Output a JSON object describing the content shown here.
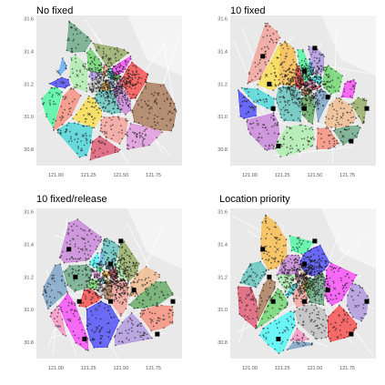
{
  "chart_data": [
    {
      "type": "scatter",
      "title": "No fixed",
      "x_ticks": [
        "121.00",
        "121.25",
        "121.50",
        "121.75"
      ],
      "y_ticks": [
        "31.6",
        "31.4",
        "31.2",
        "31.0",
        "30.8"
      ],
      "xlim": [
        120.85,
        121.97
      ],
      "ylim": [
        30.7,
        31.62
      ],
      "fixed_markers": []
    },
    {
      "type": "scatter",
      "title": "10 fixed",
      "x_ticks": [
        "121.00",
        "121.25",
        "121.50",
        "121.75"
      ],
      "y_ticks": [
        "31.6",
        "31.4",
        "31.2",
        "31.0",
        "30.8"
      ],
      "xlim": [
        120.85,
        121.97
      ],
      "ylim": [
        30.7,
        31.62
      ],
      "fixed_markers": [
        [
          121.1,
          31.37
        ],
        [
          121.18,
          31.05
        ],
        [
          121.42,
          31.05
        ],
        [
          121.22,
          30.82
        ],
        [
          121.78,
          30.85
        ],
        [
          121.9,
          31.05
        ],
        [
          121.6,
          31.12
        ],
        [
          121.42,
          31.28
        ],
        [
          121.15,
          31.2
        ],
        [
          121.5,
          31.42
        ]
      ]
    },
    {
      "type": "scatter",
      "title": "10 fixed/release",
      "x_ticks": [
        "121.00",
        "121.25",
        "121.50",
        "121.75"
      ],
      "y_ticks": [
        "31.6",
        "31.4",
        "31.2",
        "31.0",
        "30.8"
      ],
      "xlim": [
        120.85,
        121.97
      ],
      "ylim": [
        30.7,
        31.62
      ],
      "fixed_markers": [
        [
          121.1,
          31.37
        ],
        [
          121.18,
          31.05
        ],
        [
          121.42,
          31.05
        ],
        [
          121.22,
          30.82
        ],
        [
          121.78,
          30.85
        ],
        [
          121.9,
          31.05
        ],
        [
          121.6,
          31.12
        ],
        [
          121.42,
          31.28
        ],
        [
          121.15,
          31.2
        ],
        [
          121.5,
          31.42
        ]
      ]
    },
    {
      "type": "scatter",
      "title": "Location priority",
      "x_ticks": [
        "121.00",
        "121.25",
        "121.50",
        "121.75"
      ],
      "y_ticks": [
        "31.6",
        "31.4",
        "31.2",
        "31.0",
        "30.8"
      ],
      "xlim": [
        120.85,
        121.97
      ],
      "ylim": [
        30.7,
        31.62
      ],
      "fixed_markers": [
        [
          121.1,
          31.37
        ],
        [
          121.18,
          31.05
        ],
        [
          121.42,
          31.05
        ],
        [
          121.22,
          30.82
        ],
        [
          121.78,
          30.85
        ],
        [
          121.9,
          31.05
        ],
        [
          121.6,
          31.12
        ],
        [
          121.42,
          31.28
        ],
        [
          121.15,
          31.2
        ],
        [
          121.5,
          31.42
        ]
      ]
    }
  ],
  "colors": {
    "background": "#ffffff",
    "map_land": "#e9e9e9",
    "map_water": "#f4f4f4",
    "map_roads": "#ffffff",
    "point": "#111111",
    "fixed_marker": "#000000",
    "cluster_palette": [
      "#f4a460",
      "#ff00ff",
      "#9370db",
      "#20b2aa",
      "#32cd32",
      "#ff0000",
      "#4682b4",
      "#228b22",
      "#ff69b4",
      "#00ffff",
      "#ffa500",
      "#a9a9a9",
      "#8b4513",
      "#00ff7f",
      "#dc143c",
      "#1e90ff",
      "#da70d6",
      "#90ee90",
      "#ffd700",
      "#6b8e23",
      "#00ced1",
      "#fa8072",
      "#2e8b57",
      "#ba55d3",
      "#ff6347",
      "#0000ff"
    ]
  }
}
